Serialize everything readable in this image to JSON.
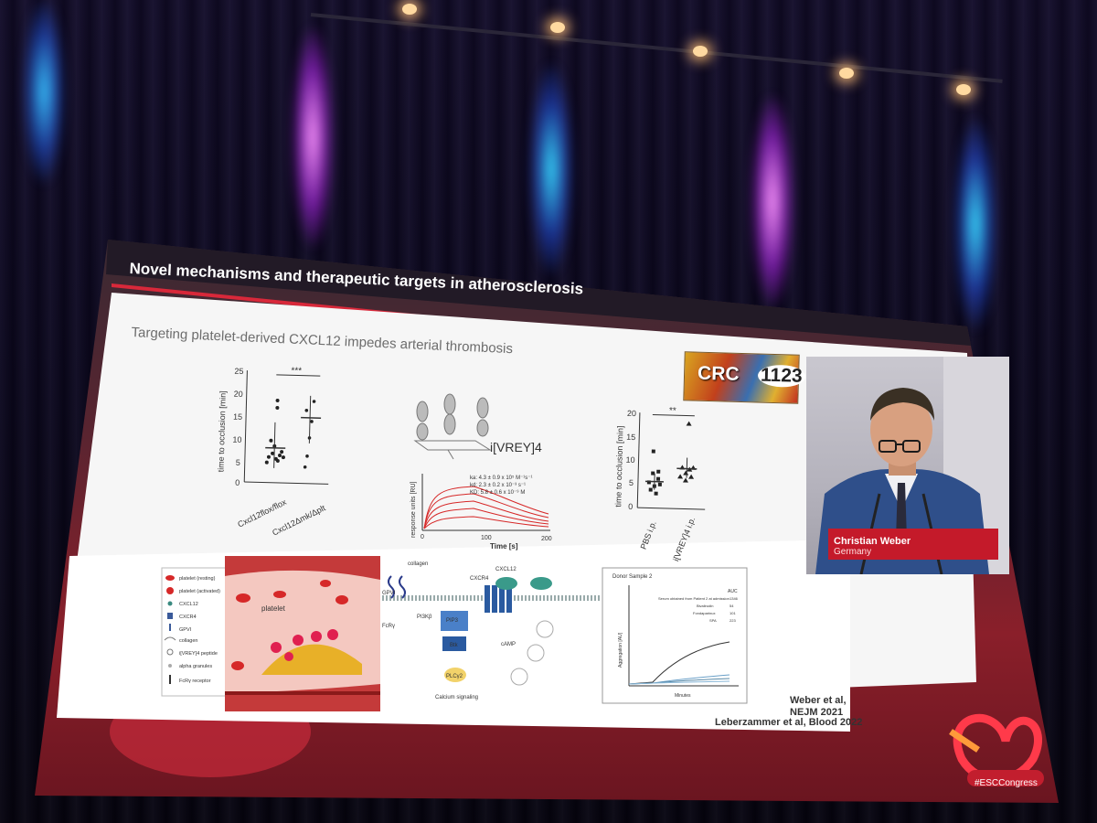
{
  "slide": {
    "title": "Novel mechanisms and therapeutic targets in atherosclerosis",
    "subtitle": "Targeting platelet-derived CXCL12 impedes arterial thrombosis",
    "logo": {
      "text": "CRC",
      "number": "1123"
    },
    "references": [
      "Weber et al,",
      "NEJM 2021",
      "Leberzammer et al, Blood 2022"
    ],
    "hashtag": "#ESCCongress"
  },
  "speaker": {
    "name": "Christian Weber",
    "country": "Germany"
  },
  "panel_left": {
    "ylabel": "time to occlusion [min]",
    "yticks": [
      "25",
      "20",
      "15",
      "10",
      "5",
      "0"
    ],
    "xticks": [
      "Cxcl12flox/flox",
      "Cxcl12Δmk/Δplt"
    ],
    "significance": "***"
  },
  "panel_middle": {
    "peptide_label": "i[VREY]4",
    "ylabel": "response units [RU]",
    "xlabel": "Time [s]",
    "xticks": [
      "0",
      "100",
      "200"
    ],
    "kinetics": [
      "ka:  4.3 ± 0.9 x 10⁵ M⁻¹s⁻¹",
      "kd:  2.3 ± 0.2 x 10⁻³ s⁻¹",
      "KD:  5.8 ± 0.6 x 10⁻⁹ M"
    ]
  },
  "panel_right": {
    "ylabel": "time to occlusion [min]",
    "yticks": [
      "20",
      "15",
      "10",
      "5",
      "0"
    ],
    "xticks": [
      "PBS i.p.",
      "i[VREY]4 i.p."
    ],
    "significance": "**"
  },
  "legend_items": [
    "platelet (resting)",
    "platelet (activated)",
    "CXCL12",
    "CXCR4",
    "GPVI",
    "collagen",
    "i[VREY]4 peptide",
    "alpha granules",
    "FcRγ receptor"
  ],
  "vessel_label": "platelet",
  "pathway_labels": [
    "collagen",
    "GPVI",
    "FcRγ",
    "CXCR4",
    "CXCL12",
    "PI3Kβ",
    "PIP3",
    "Btk",
    "PLCγ2",
    "Calcium signaling",
    "cAMP"
  ],
  "aggregation": {
    "title": "Donor Sample 2",
    "ylabel": "Aggregation [AU]",
    "xlabel": "Minutes",
    "legend_title": "AUC",
    "legend": [
      "Serum obtained from Patient 2 at admission",
      "Bivalirudin",
      "Fondaparinux",
      "SPA"
    ],
    "legend_values": [
      "1346",
      "54",
      "101",
      "223"
    ]
  }
}
